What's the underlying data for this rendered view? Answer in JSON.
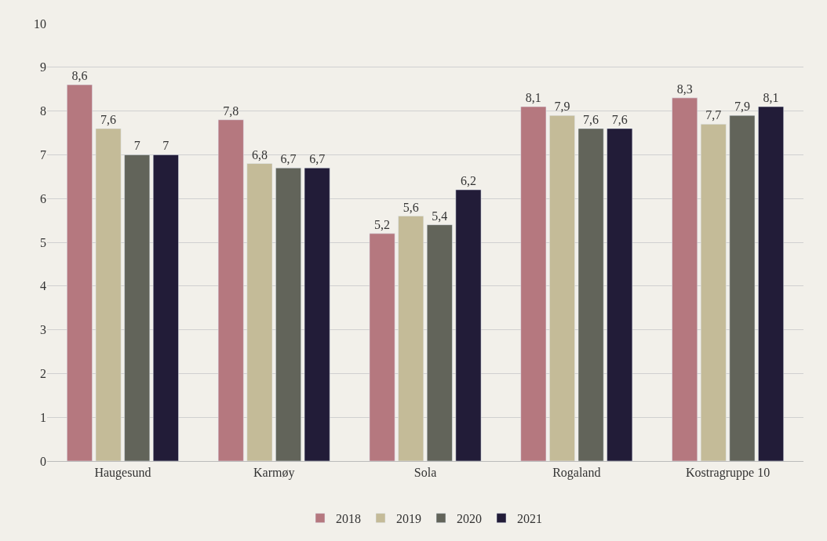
{
  "chart_data": {
    "type": "bar",
    "categories": [
      "Haugesund",
      "Karmøy",
      "Sola",
      "Rogaland",
      "Kostragruppe 10"
    ],
    "series": [
      {
        "name": "2018",
        "color": "#b5787f",
        "values": [
          8.6,
          7.8,
          5.2,
          8.1,
          8.3
        ],
        "value_labels": [
          "8,6",
          "7,8",
          "5,2",
          "8,1",
          "8,3"
        ]
      },
      {
        "name": "2019",
        "color": "#c4bb98",
        "values": [
          7.6,
          6.8,
          5.6,
          7.9,
          7.7
        ],
        "value_labels": [
          "7,6",
          "6,8",
          "5,6",
          "7,9",
          "7,7"
        ]
      },
      {
        "name": "2020",
        "color": "#62645a",
        "values": [
          7,
          6.7,
          5.4,
          7.6,
          7.9
        ],
        "value_labels": [
          "7",
          "6,7",
          "5,4",
          "7,6",
          "7,9"
        ]
      },
      {
        "name": "2021",
        "color": "#221c38",
        "values": [
          7,
          6.7,
          6.2,
          7.6,
          8.1
        ],
        "value_labels": [
          "7",
          "6,7",
          "6,2",
          "7,6",
          "8,1"
        ]
      }
    ],
    "ylim": [
      0,
      10
    ],
    "yticks": [
      0,
      1,
      2,
      3,
      4,
      5,
      6,
      7,
      8,
      9,
      10
    ],
    "grid": "y",
    "legend": "bottom"
  }
}
